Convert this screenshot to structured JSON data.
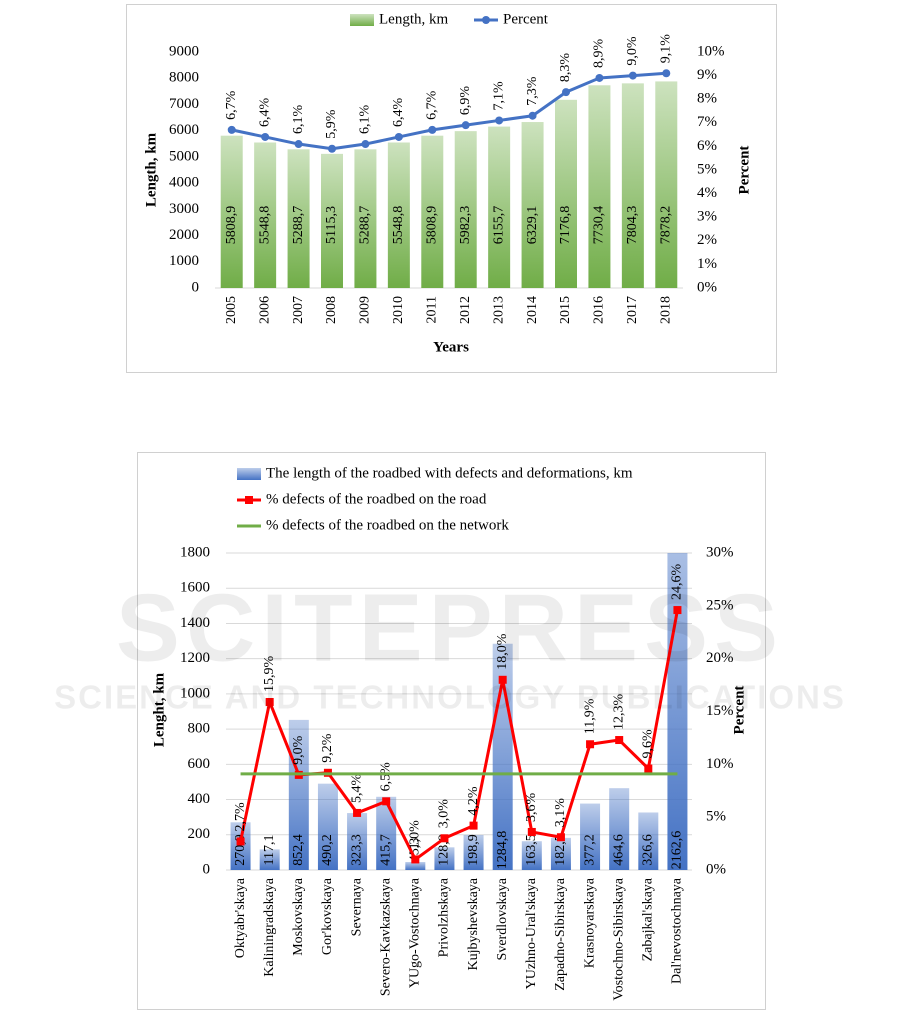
{
  "watermark": {
    "title": "SCITEPRESS",
    "subtitle": "SCIENCE AND TECHNOLOGY PUBLICATIONS"
  },
  "chart_data": [
    {
      "type": "bar",
      "categories": [
        "2005",
        "2006",
        "2007",
        "2008",
        "2009",
        "2010",
        "2011",
        "2012",
        "2013",
        "2014",
        "2015",
        "2016",
        "2017",
        "2018"
      ],
      "series": [
        {
          "name": "Length, km",
          "type": "bar",
          "color": "#70ad47",
          "values": [
            5808.9,
            5548.8,
            5288.7,
            5115.3,
            5288.7,
            5548.8,
            5808.9,
            5982.3,
            6155.7,
            6329.1,
            7176.8,
            7730.4,
            7804.3,
            7878.2
          ],
          "value_labels": [
            "5808,9",
            "5548,8",
            "5288,7",
            "5115,3",
            "5288,7",
            "5548,8",
            "5808,9",
            "5982,3",
            "6155,7",
            "6329,1",
            "7176,8",
            "7730,4",
            "7804,3",
            "7878,2"
          ]
        },
        {
          "name": "Percent",
          "type": "line",
          "axis": "y2",
          "color": "#4472c4",
          "marker": "circle",
          "values": [
            6.7,
            6.4,
            6.1,
            5.9,
            6.1,
            6.4,
            6.7,
            6.9,
            7.1,
            7.3,
            8.3,
            8.9,
            9.0,
            9.1
          ],
          "value_labels": [
            "6,7%",
            "6,4%",
            "6,1%",
            "5,9%",
            "6,1%",
            "6,4%",
            "6,7%",
            "6,9%",
            "7,1%",
            "7,3%",
            "8,3%",
            "8,9%",
            "9,0%",
            "9,1%"
          ]
        }
      ],
      "ylim": [
        0,
        9000
      ],
      "yticks": [
        0,
        1000,
        2000,
        3000,
        4000,
        5000,
        6000,
        7000,
        8000,
        9000
      ],
      "y2lim": [
        0,
        10
      ],
      "y2ticks": [
        {
          "value": 0,
          "label": "0%"
        },
        {
          "value": 1,
          "label": "1%"
        },
        {
          "value": 2,
          "label": "2%"
        },
        {
          "value": 3,
          "label": "3%"
        },
        {
          "value": 4,
          "label": "4%"
        },
        {
          "value": 5,
          "label": "5%"
        },
        {
          "value": 6,
          "label": "6%"
        },
        {
          "value": 7,
          "label": "7%"
        },
        {
          "value": 8,
          "label": "8%"
        },
        {
          "value": 9,
          "label": "9%"
        },
        {
          "value": 10,
          "label": "10%"
        }
      ],
      "y_label": "Length, km",
      "y2_label": "Percent",
      "x_label": "Years",
      "grid": false,
      "legend": "top"
    },
    {
      "type": "bar",
      "categories": [
        "Oktyabr'skaya",
        "Kaliningradskaya",
        "Moskovskaya",
        "Gor'kovskaya",
        "Severnaya",
        "Severo-Kavkazskaya",
        "YUgo-Vostochnaya",
        "Privolzhskaya",
        "Kujbyshevskaya",
        "Sverdlovskaya",
        "YUzhno-Ural'skaya",
        "Zapadno-Sibirskaya",
        "Krasnoyarskaya",
        "Vostochno-Sibirskaya",
        "Zabajkal'skaya",
        "Dal'nevostochnaya"
      ],
      "series": [
        {
          "name": "The length of the roadbed with defects and deformations, km",
          "type": "bar",
          "color": "#4472c4",
          "values": [
            270.9,
            117.1,
            852.4,
            490.2,
            323.3,
            415.7,
            45.3,
            128.8,
            198.9,
            1284.8,
            163.5,
            182.5,
            377.2,
            464.6,
            326.6,
            2162.6
          ],
          "value_labels": [
            "270,9",
            "117,1",
            "852,4",
            "490,2",
            "323,3",
            "415,7",
            "45,3",
            "128,8",
            "198,9",
            "1284,8",
            "163,5",
            "182,5",
            "377,2",
            "464,6",
            "326,6",
            "2162,6"
          ]
        },
        {
          "name": "% defects of the roadbed on the road",
          "type": "line",
          "axis": "y2",
          "color": "#ff0000",
          "marker": "square",
          "values": [
            2.7,
            15.9,
            9.0,
            9.2,
            5.4,
            6.5,
            1.0,
            3.0,
            4.2,
            18.0,
            3.6,
            3.1,
            11.9,
            12.3,
            9.6,
            24.6
          ],
          "value_labels": [
            "2,7%",
            "15,9%",
            "9,0%",
            "9,2%",
            "5,4%",
            "6,5%",
            "1,0%",
            "3,0%",
            "4,2%",
            "18,0%",
            "3,6%",
            "3,1%",
            "11,9%",
            "12,3%",
            "9,6%",
            "24,6%"
          ]
        },
        {
          "name": "% defects of the roadbed on the network",
          "type": "line",
          "axis": "y2",
          "color": "#70ad47",
          "marker": "none",
          "values": [
            9.1,
            9.1,
            9.1,
            9.1,
            9.1,
            9.1,
            9.1,
            9.1,
            9.1,
            9.1,
            9.1,
            9.1,
            9.1,
            9.1,
            9.1,
            9.1
          ]
        }
      ],
      "ylim": [
        0,
        1800
      ],
      "yticks": [
        0,
        200,
        400,
        600,
        800,
        1000,
        1200,
        1400,
        1600,
        1800
      ],
      "y2lim": [
        0,
        30
      ],
      "y2ticks": [
        {
          "value": 0,
          "label": "0%"
        },
        {
          "value": 5,
          "label": "5%"
        },
        {
          "value": 10,
          "label": "10%"
        },
        {
          "value": 15,
          "label": "15%"
        },
        {
          "value": 20,
          "label": "20%"
        },
        {
          "value": 25,
          "label": "25%"
        },
        {
          "value": 30,
          "label": "30%"
        }
      ],
      "y_label": "Lenght, km",
      "y2_label": "Percent",
      "grid": true,
      "legend": "top-left"
    }
  ]
}
